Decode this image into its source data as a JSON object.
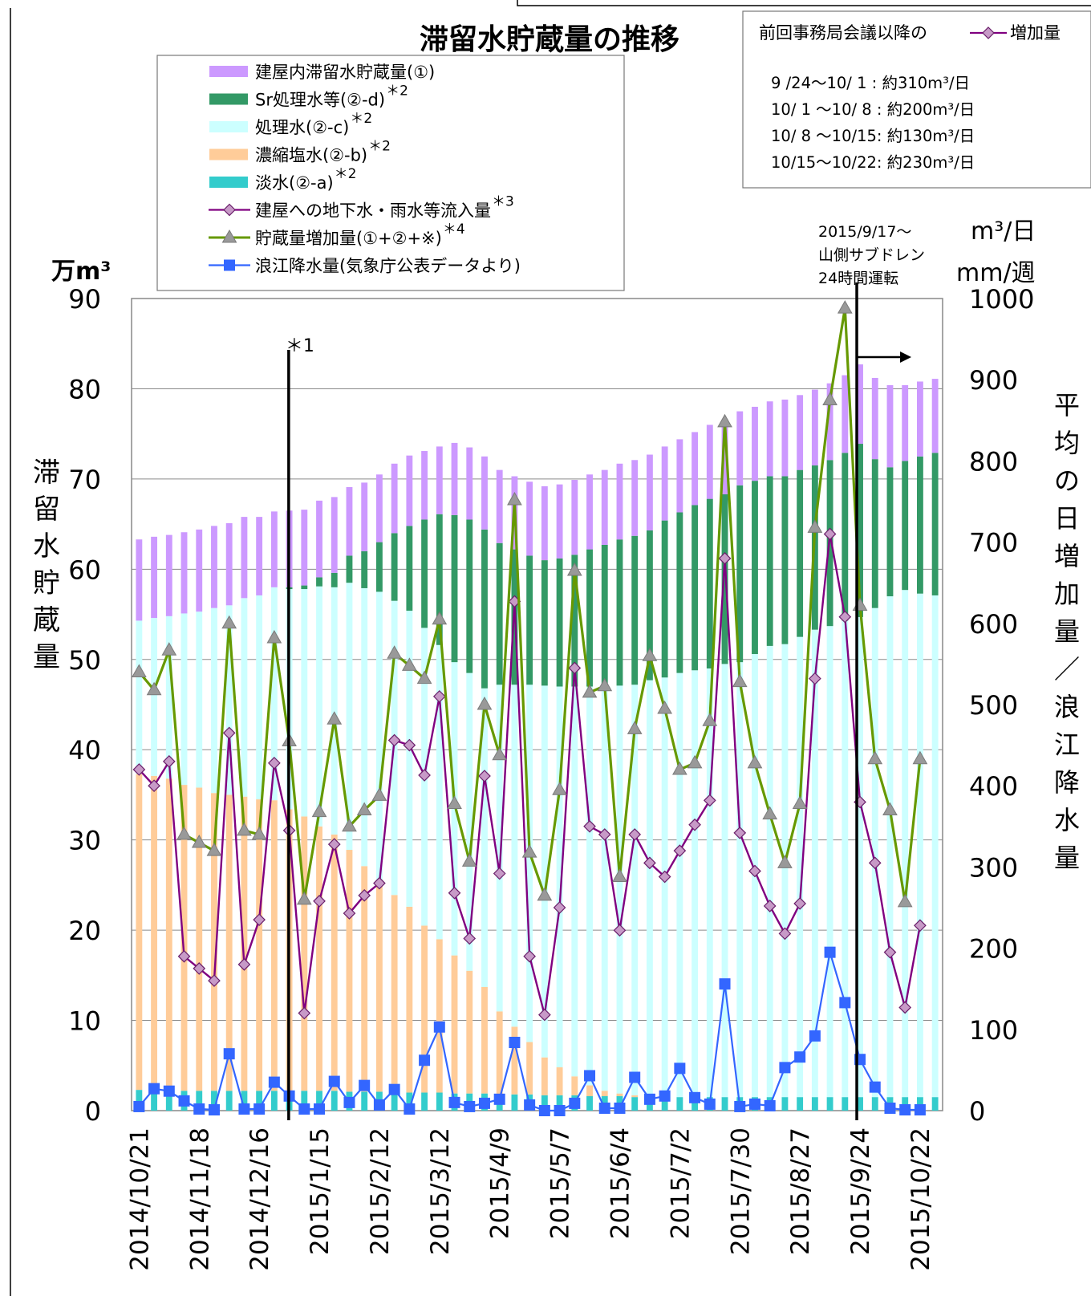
{
  "chart_data": {
    "type": "bar",
    "title": "滞留水貯蔵量の推移",
    "left_axis": {
      "unit": "万m³",
      "label_chars": [
        "滞",
        "留",
        "水",
        "貯",
        "蔵",
        "量"
      ],
      "range": [
        0,
        90
      ],
      "ticks": [
        "0",
        "10",
        "20",
        "30",
        "40",
        "50",
        "60",
        "70",
        "80",
        "90"
      ]
    },
    "right_axis": {
      "unit_line1": "m³/日",
      "unit_line2": "mm/週",
      "label_chars": [
        "平",
        "均",
        "の",
        "日",
        "増",
        "加",
        "量",
        "／",
        "浪",
        "江",
        "降",
        "水",
        "量"
      ],
      "range": [
        0,
        1000
      ],
      "ticks": [
        "0",
        "100",
        "200",
        "300",
        "400",
        "500",
        "600",
        "700",
        "800",
        "900",
        "1000"
      ]
    },
    "x_tick_labels": [
      "2014/10/21",
      "2014/11/18",
      "2014/12/16",
      "2015/1/15",
      "2015/2/12",
      "2015/3/12",
      "2015/4/9",
      "2015/5/7",
      "2015/6/4",
      "2015/7/2",
      "2015/7/30",
      "2015/8/27",
      "2015/9/24",
      "2015/10/22"
    ],
    "legend": [
      {
        "label": "建屋内滞留水貯蔵量(①)",
        "sup": "",
        "color": "#cc99ff",
        "kind": "bar"
      },
      {
        "label": "Sr処理水等(②-d)",
        "sup": "＊2",
        "color": "#339966",
        "kind": "bar"
      },
      {
        "label": "処理水(②-c)",
        "sup": "＊2",
        "color": "#ccffff",
        "kind": "bar"
      },
      {
        "label": "濃縮塩水(②-b)",
        "sup": "＊2",
        "color": "#ffcc99",
        "kind": "bar"
      },
      {
        "label": "淡水(②-a)",
        "sup": "＊2",
        "color": "#33cccc",
        "kind": "bar"
      },
      {
        "label": "建屋への地下水・雨水等流入量",
        "sup": "＊3",
        "color": "#800080",
        "kind": "line-diamond"
      },
      {
        "label": "貯蔵量増加量(①+②+※)",
        "sup": "＊4",
        "color": "#669900",
        "kind": "line-triangle"
      },
      {
        "label": "浪江降水量(気象庁公表データより)",
        "sup": "",
        "color": "#3366ff",
        "kind": "line-square"
      }
    ],
    "info_box": {
      "header_left": "前回事務局会議以降の",
      "header_right": "増加量",
      "lines": [
        "9 /24〜10/ 1 : 約310m³/日",
        "10/ 1 〜10/ 8 : 約200m³/日",
        "10/ 8 〜10/15: 約130m³/日",
        "10/15〜10/22: 約230m³/日"
      ]
    },
    "annotations": {
      "marker1": "＊1",
      "marker2_lines": [
        "2015/9/17〜",
        "山側サブドレン",
        "24時間運転"
      ],
      "marker1_index": 9.5,
      "marker2_index": 48
    },
    "stacks": {
      "fresh": [
        2.3,
        2.3,
        2.3,
        2.2,
        2.2,
        2.2,
        2.2,
        2.2,
        2.2,
        2.2,
        2.2,
        2.2,
        2.2,
        2.2,
        2.1,
        2.1,
        2.1,
        2.1,
        2.0,
        2.0,
        2.0,
        1.9,
        1.9,
        1.9,
        1.8,
        1.8,
        1.8,
        1.7,
        1.7,
        1.7,
        1.6,
        1.6,
        1.6,
        1.5,
        1.5,
        1.5,
        1.5,
        1.5,
        1.5,
        1.5,
        1.5,
        1.5,
        1.5,
        1.5,
        1.5,
        1.5,
        1.5,
        1.5,
        1.5,
        1.5,
        1.5,
        1.5,
        1.5,
        1.5
      ],
      "concentrated": [
        35.0,
        34.8,
        34.5,
        33.9,
        33.6,
        33.0,
        32.8,
        32.6,
        32.3,
        32.2,
        31.2,
        30.4,
        29.3,
        28.4,
        26.8,
        25.0,
        23.2,
        21.8,
        20.6,
        18.5,
        17.0,
        15.3,
        13.6,
        11.8,
        9.2,
        7.5,
        5.8,
        4.2,
        3.1,
        2.1,
        1.2,
        0.6,
        0.3,
        0.2,
        0,
        0,
        0,
        0,
        0,
        0,
        0,
        0,
        0,
        0,
        0,
        0,
        0,
        0,
        0,
        0,
        0,
        0,
        0,
        0
      ],
      "treated": [
        17.0,
        17.5,
        18.0,
        19.0,
        19.5,
        20.5,
        21.0,
        22.0,
        22.6,
        23.6,
        24.4,
        25.2,
        26.6,
        27.4,
        29.6,
        30.8,
        32.2,
        32.6,
        32.8,
        33.0,
        32.6,
        32.5,
        33.0,
        33.1,
        36.2,
        37.9,
        39.6,
        41.2,
        42.2,
        43.2,
        44.2,
        44.9,
        45.2,
        45.5,
        46.2,
        46.5,
        47.0,
        47.3,
        47.5,
        48.0,
        48.2,
        49.1,
        50.0,
        50.2,
        51.0,
        51.8,
        52.2,
        52.8,
        53.2,
        54.2,
        55.5,
        56.2,
        55.8,
        55.6
      ],
      "sr": [
        0,
        0,
        0,
        0,
        0,
        0,
        0,
        0,
        0,
        0,
        0.2,
        0.4,
        1.0,
        1.6,
        3.0,
        4.1,
        5.5,
        7.5,
        9.4,
        12.0,
        14.5,
        16.3,
        17.0,
        17.6,
        15.7,
        15.0,
        14.3,
        13.9,
        14.2,
        14.6,
        15.2,
        15.6,
        16.2,
        16.5,
        16.6,
        17.4,
        17.8,
        18.3,
        18.8,
        18.8,
        19.6,
        19.2,
        18.8,
        18.6,
        18.5,
        18.2,
        18.4,
        18.6,
        19.2,
        16.5,
        14.3,
        14.3,
        15.2,
        15.8
      ],
      "building": [
        9.0,
        9.0,
        9.0,
        9.0,
        9.1,
        9.1,
        9.1,
        9.0,
        8.7,
        8.4,
        8.5,
        8.4,
        8.5,
        8.4,
        7.6,
        7.6,
        7.5,
        7.7,
        7.8,
        7.6,
        7.5,
        8.0,
        8.0,
        8.1,
        8.1,
        8.1,
        8.2,
        8.2,
        8.2,
        8.3,
        8.3,
        8.3,
        8.4,
        8.4,
        8.4,
        8.2,
        8.1,
        8.1,
        8.2,
        8.2,
        8.2,
        8.2,
        8.3,
        8.5,
        8.3,
        8.4,
        8.5,
        8.6,
        8.8,
        9.0,
        9.1,
        8.4,
        8.3,
        8.2
      ]
    },
    "series": [
      {
        "name": "建屋への地下水・雨水等流入量",
        "values": [
          420,
          400,
          430,
          190,
          175,
          160,
          465,
          180,
          235,
          428,
          345,
          120,
          258,
          328,
          243,
          265,
          280,
          456,
          450,
          413,
          510,
          268,
          212,
          412,
          292,
          627,
          190,
          118,
          250,
          545,
          350,
          340,
          222,
          340,
          305,
          288,
          320,
          352,
          382,
          680,
          342,
          295,
          252,
          218,
          255,
          532,
          710,
          608,
          380,
          305,
          195,
          127,
          228
        ]
      },
      {
        "name": "貯蔵量増加量(①+②+※)",
        "values": [
          540,
          518,
          567,
          340,
          330,
          320,
          600,
          345,
          340,
          582,
          455,
          260,
          368,
          482,
          350,
          370,
          388,
          563,
          548,
          532,
          605,
          378,
          307,
          500,
          438,
          752,
          318,
          265,
          395,
          665,
          515,
          523,
          288,
          470,
          560,
          495,
          420,
          428,
          480,
          848,
          528,
          428,
          365,
          305,
          378,
          718,
          875,
          988,
          622,
          433,
          370,
          257,
          433
        ]
      },
      {
        "name": "浪江降水量(気象庁公表データより)",
        "values": [
          5,
          27,
          24,
          12,
          2,
          1,
          70,
          2,
          2,
          35,
          18,
          2,
          2,
          36,
          10,
          31,
          7,
          26,
          2,
          62,
          103,
          10,
          5,
          9,
          14,
          84,
          7,
          0,
          0,
          9,
          43,
          3,
          3,
          41,
          14,
          18,
          52,
          16,
          8,
          156,
          5,
          8,
          6,
          53,
          66,
          92,
          195,
          133,
          63,
          29,
          3,
          1,
          1
        ]
      }
    ]
  }
}
